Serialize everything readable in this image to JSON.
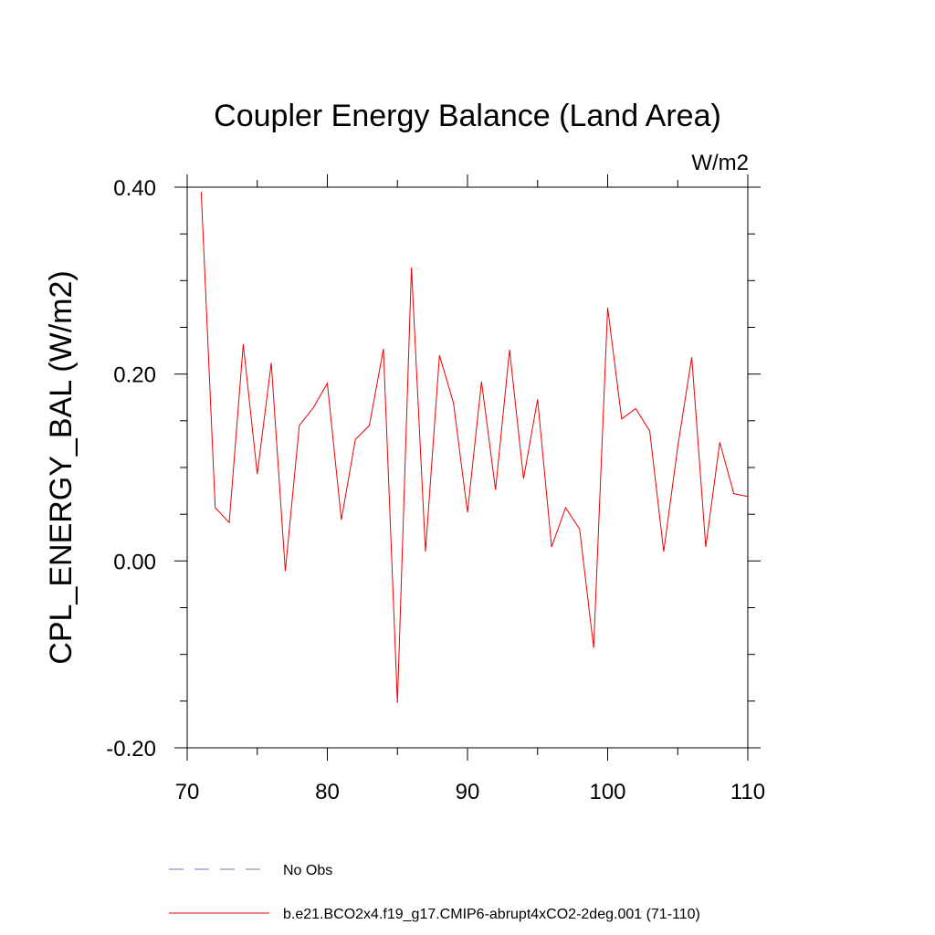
{
  "chart_data": {
    "type": "line",
    "title": "Coupler Energy Balance (Land Area)",
    "units_label": "W/m2",
    "ylabel": "CPL_ENERGY_BAL  (W/m2)",
    "xlabel": "",
    "xlim": [
      70,
      110
    ],
    "ylim": [
      -0.2,
      0.4
    ],
    "x_ticks": [
      {
        "value": 70,
        "label": "70"
      },
      {
        "value": 80,
        "label": "80"
      },
      {
        "value": 90,
        "label": "90"
      },
      {
        "value": 100,
        "label": "100"
      },
      {
        "value": 110,
        "label": "110"
      }
    ],
    "y_ticks": [
      {
        "value": -0.2,
        "label": "-0.20"
      },
      {
        "value": 0.0,
        "label": "0.00"
      },
      {
        "value": 0.2,
        "label": "0.20"
      },
      {
        "value": 0.4,
        "label": "0.40"
      }
    ],
    "x_minor_step": 5,
    "y_minor_step": 0.05,
    "grid": false,
    "legend_position": "bottom",
    "series": [
      {
        "name": "No Obs",
        "color": "#7f72c8",
        "dash": true,
        "x": [],
        "y": []
      },
      {
        "name": "b.e21.BCO2x4.f19_g17.CMIP6-abrupt4xCO2-2deg.001 (71-110)",
        "color": "#ee0000",
        "dash": false,
        "x": [
          71,
          72,
          73,
          74,
          75,
          76,
          77,
          78,
          79,
          80,
          81,
          82,
          83,
          84,
          85,
          86,
          87,
          88,
          89,
          90,
          91,
          92,
          93,
          94,
          95,
          96,
          97,
          98,
          99,
          100,
          101,
          102,
          103,
          104,
          105,
          106,
          107,
          108,
          109,
          110
        ],
        "y": [
          0.395,
          0.057,
          0.041,
          0.232,
          0.093,
          0.212,
          -0.011,
          0.145,
          0.164,
          0.19,
          0.044,
          0.13,
          0.145,
          0.227,
          -0.152,
          0.314,
          0.01,
          0.22,
          0.169,
          0.052,
          0.192,
          0.076,
          0.226,
          0.088,
          0.173,
          0.015,
          0.057,
          0.034,
          -0.093,
          0.271,
          0.152,
          0.163,
          0.139,
          0.01,
          0.122,
          0.218,
          0.015,
          0.127,
          0.072,
          0.069
        ]
      }
    ]
  }
}
